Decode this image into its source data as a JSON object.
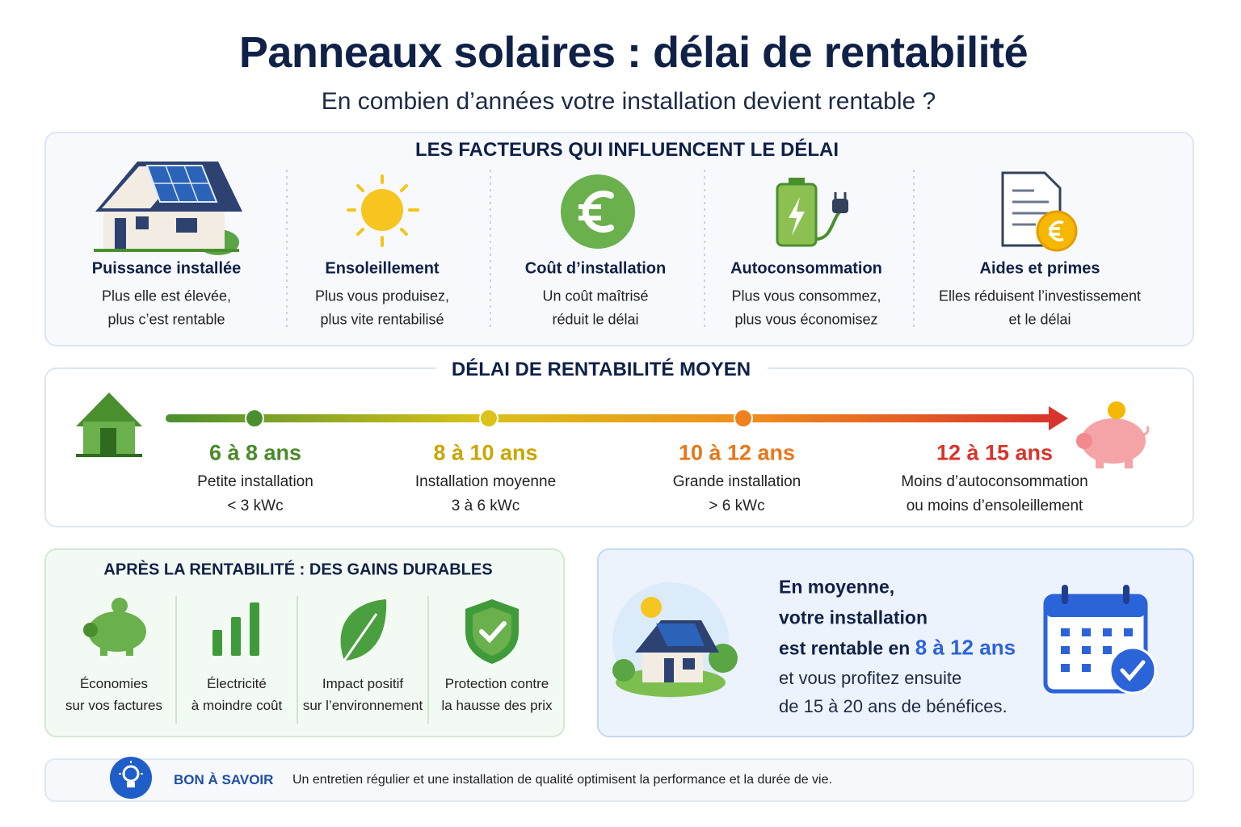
{
  "header": {
    "title": "Panneaux solaires : délai de rentabilité",
    "subtitle": "En combien d’années votre installation devient rentable ?"
  },
  "factors": {
    "title": "LES FACTEURS QUI INFLUENCENT LE DÉLAI",
    "items": [
      {
        "title": "Puissance installée",
        "lines": [
          "Plus elle est élevée,",
          "plus c’est rentable"
        ]
      },
      {
        "title": "Ensoleillement",
        "lines": [
          "Plus vous produisez,",
          "plus vite rentabilisé"
        ]
      },
      {
        "title": "Coût d’installation",
        "lines": [
          "Un coût maîtrisé",
          "réduit le délai"
        ]
      },
      {
        "title": "Autoconsommation",
        "lines": [
          "Plus vous consommez,",
          "plus vous économisez"
        ]
      },
      {
        "title": "Aides et primes",
        "lines": [
          "Elles réduisent l’investissement",
          "et le délai"
        ]
      }
    ]
  },
  "timeline": {
    "title": "DÉLAI DE RENTABILITÉ MOYEN",
    "steps": [
      {
        "range": "6 à 8 ans",
        "lines": [
          "Petite installation",
          "< 3 kWc"
        ]
      },
      {
        "range": "8 à 10 ans",
        "lines": [
          "Installation moyenne",
          "3 à 6 kWc"
        ]
      },
      {
        "range": "10 à 12 ans",
        "lines": [
          "Grande installation",
          "> 6 kWc"
        ]
      },
      {
        "range": "12 à 15 ans",
        "lines": [
          "Moins d’autoconsommation",
          "ou moins d’ensoleillement"
        ]
      }
    ]
  },
  "gains": {
    "title": "APRÈS LA RENTABILITÉ : DES GAINS DURABLES",
    "items": [
      {
        "lines": [
          "Économies",
          "sur vos factures"
        ]
      },
      {
        "lines": [
          "Électricité",
          "à moindre coût"
        ]
      },
      {
        "lines": [
          "Impact positif",
          "sur l’environnement"
        ]
      },
      {
        "lines": [
          "Protection contre",
          "la hausse des prix"
        ]
      }
    ]
  },
  "summary": {
    "line1": "En moyenne,",
    "line2": "votre installation",
    "line3": "est rentable en",
    "highlight": "8 à 12 ans",
    "line4": "et vous profitez ensuite",
    "line5": "de 15 à 20 ans de bénéfices."
  },
  "tip": {
    "label": "BON À SAVOIR",
    "text": "Un entretien régulier et une installation de qualité optimisent la performance et la durée de vie."
  }
}
